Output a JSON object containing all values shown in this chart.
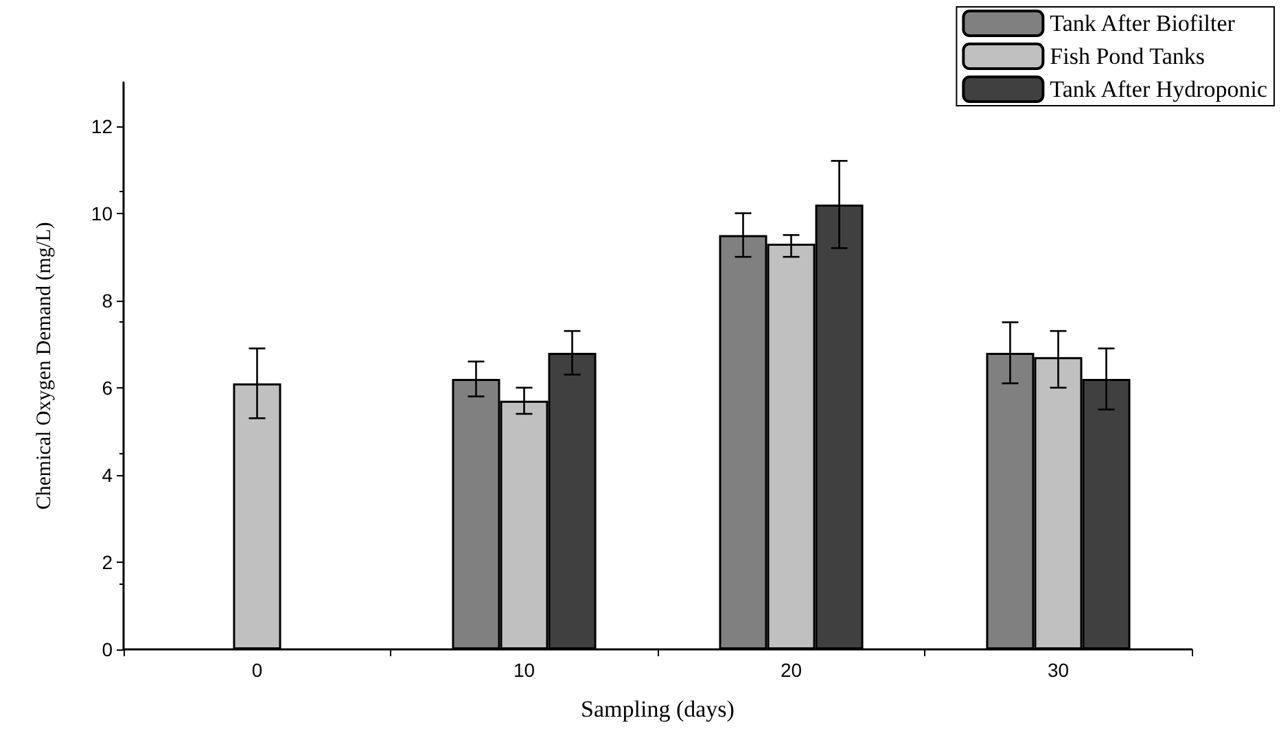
{
  "chart_data": {
    "type": "bar",
    "xlabel": "Sampling (days)",
    "ylabel": "Chemical Oxygen Demand (mg/L)",
    "categories": [
      "0",
      "10",
      "20",
      "30"
    ],
    "series": [
      {
        "name": "Tank After Biofilter",
        "color": "#808080",
        "values": [
          null,
          6.2,
          9.5,
          6.8
        ],
        "errors": [
          null,
          [
            5.8,
            6.6
          ],
          [
            9.0,
            10.0
          ],
          [
            6.1,
            7.5
          ]
        ]
      },
      {
        "name": "Fish Pond Tanks",
        "color": "#c0c0c0",
        "values": [
          6.1,
          5.7,
          9.3,
          6.7
        ],
        "errors": [
          [
            5.3,
            6.9
          ],
          [
            5.4,
            6.0
          ],
          [
            9.0,
            9.5
          ],
          [
            6.0,
            7.3
          ]
        ]
      },
      {
        "name": "Tank After Hydroponic",
        "color": "#404040",
        "values": [
          null,
          6.8,
          10.2,
          6.2
        ],
        "errors": [
          null,
          [
            6.3,
            7.3
          ],
          [
            9.2,
            11.2
          ],
          [
            5.5,
            6.9
          ]
        ]
      }
    ],
    "ylim": [
      0,
      13
    ],
    "yticks": [
      0,
      2,
      4,
      6,
      8,
      10,
      12
    ],
    "grid": false,
    "legend": "top right"
  }
}
